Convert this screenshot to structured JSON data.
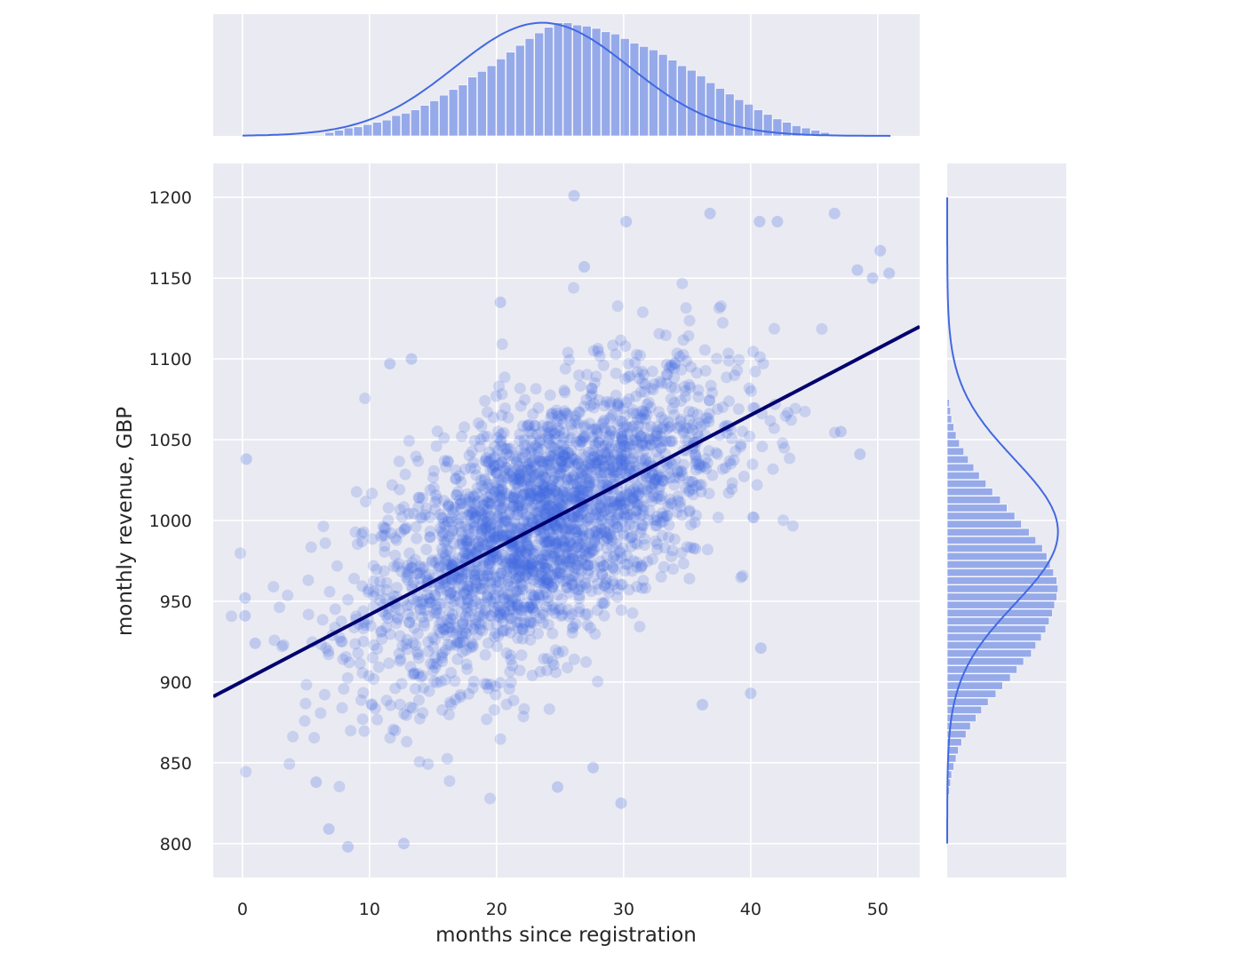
{
  "chart_data": {
    "type": "scatter",
    "subtype": "jointplot-regression",
    "xlabel": "months since registration",
    "ylabel": "monthly revenue, GBP",
    "xlim": [
      -2.3,
      53.3
    ],
    "ylim": [
      779,
      1221
    ],
    "xticks": [
      "0",
      "10",
      "20",
      "30",
      "40",
      "50"
    ],
    "yticks": [
      "800",
      "850",
      "900",
      "950",
      "1000",
      "1050",
      "1100",
      "1150",
      "1200"
    ],
    "grid": true,
    "colors": {
      "points": "#4169e1",
      "regression_line": "#00006e",
      "background": "#eaeaf2",
      "grid": "#ffffff"
    },
    "regression": {
      "x": [
        -2.3,
        53.3
      ],
      "y": [
        891,
        1120
      ]
    },
    "points_summary": {
      "x_mean": 23.5,
      "x_std": 7.0,
      "y_mean": 1000,
      "y_std": 45,
      "n_approx": 10000
    },
    "outliers": [
      {
        "x": 26.1,
        "y": 1201
      },
      {
        "x": 30.2,
        "y": 1185
      },
      {
        "x": 36.8,
        "y": 1190
      },
      {
        "x": 46.6,
        "y": 1190
      },
      {
        "x": 40.7,
        "y": 1185
      },
      {
        "x": 42.1,
        "y": 1185
      },
      {
        "x": 0.3,
        "y": 1038
      },
      {
        "x": 8.3,
        "y": 798
      },
      {
        "x": 12.7,
        "y": 800
      },
      {
        "x": 6.8,
        "y": 809
      },
      {
        "x": 29.8,
        "y": 825
      },
      {
        "x": 24.8,
        "y": 835
      },
      {
        "x": 50.9,
        "y": 1153
      },
      {
        "x": 50.2,
        "y": 1167
      },
      {
        "x": 48.4,
        "y": 1155
      },
      {
        "x": 49.6,
        "y": 1150
      },
      {
        "x": 48.6,
        "y": 1041
      },
      {
        "x": 47.1,
        "y": 1055
      },
      {
        "x": 0.2,
        "y": 941
      },
      {
        "x": 0.2,
        "y": 952
      },
      {
        "x": 1.0,
        "y": 924
      },
      {
        "x": 40.0,
        "y": 893
      },
      {
        "x": 40.8,
        "y": 921
      },
      {
        "x": 36.2,
        "y": 886
      },
      {
        "x": 26.9,
        "y": 1157
      },
      {
        "x": 20.3,
        "y": 1135
      },
      {
        "x": 13.3,
        "y": 1100
      },
      {
        "x": 11.6,
        "y": 1097
      },
      {
        "x": 27.6,
        "y": 847
      },
      {
        "x": 5.8,
        "y": 838
      }
    ],
    "marginal_x": {
      "bin_start": 6.5,
      "bin_width": 0.75,
      "counts": [
        0.03,
        0.05,
        0.07,
        0.08,
        0.1,
        0.12,
        0.14,
        0.18,
        0.2,
        0.23,
        0.27,
        0.31,
        0.36,
        0.41,
        0.45,
        0.52,
        0.57,
        0.62,
        0.68,
        0.74,
        0.8,
        0.86,
        0.91,
        0.96,
        1.0,
        1.0,
        0.98,
        0.97,
        0.95,
        0.92,
        0.9,
        0.86,
        0.82,
        0.79,
        0.76,
        0.72,
        0.67,
        0.62,
        0.58,
        0.53,
        0.47,
        0.42,
        0.37,
        0.32,
        0.28,
        0.23,
        0.19,
        0.15,
        0.12,
        0.09,
        0.07,
        0.05,
        0.03
      ],
      "kde_mean": 23.6,
      "kde_sd": 6.9
    },
    "marginal_y": {
      "bin_start": 830,
      "bin_width": 5,
      "counts": [
        0.02,
        0.03,
        0.04,
        0.06,
        0.08,
        0.1,
        0.13,
        0.17,
        0.21,
        0.26,
        0.31,
        0.37,
        0.44,
        0.5,
        0.57,
        0.63,
        0.69,
        0.76,
        0.8,
        0.85,
        0.89,
        0.92,
        0.95,
        0.97,
        0.99,
        1.0,
        0.99,
        0.96,
        0.93,
        0.9,
        0.86,
        0.8,
        0.74,
        0.67,
        0.61,
        0.54,
        0.48,
        0.41,
        0.35,
        0.29,
        0.24,
        0.19,
        0.15,
        0.11,
        0.08,
        0.06,
        0.04,
        0.03,
        0.02
      ],
      "kde_mean": 993,
      "kde_sd": 45
    }
  }
}
